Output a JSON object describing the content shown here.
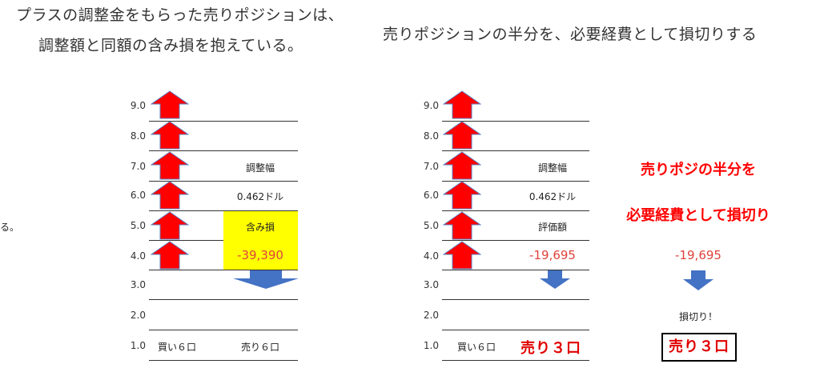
{
  "left_title": {
    "line1": "プラスの調整金をもらった売りポジションは、",
    "line2": "調整額と同額の含み損を抱えている。"
  },
  "right_title": "売りポジションの半分を、必要経費として損切りする",
  "side_fragment": "る。",
  "y_ticks": [
    "9.0",
    "8.0",
    "7.0",
    "6.0",
    "5.0",
    "4.0",
    "3.0",
    "2.0",
    "1.0"
  ],
  "left_panel": {
    "adjust_label": "調整幅",
    "adjust_value": "0.462ドル",
    "unrealized_label": "含み損",
    "unrealized_value": "-39,390",
    "buy_label": "買い６口",
    "sell_label": "売り６口"
  },
  "right_panel": {
    "adjust_label": "調整幅",
    "adjust_value": "0.462ドル",
    "valuation_label": "評価額",
    "valuation_value": "-19,695",
    "buy_label": "買い６口",
    "sell_label": "売り３口"
  },
  "annotation": {
    "line1": "売りポジの半分を",
    "line2": "必要経費として損切り",
    "loss_value": "-19,695",
    "stoploss_label": "損切り！",
    "sell_box_label": "売り３口"
  },
  "colors": {
    "up_arrow": "#ff0000",
    "up_arrow_outline": "#5b7fc4",
    "down_arrow": "#4472c4",
    "highlight": "#ffff00",
    "negative_text": "#e0433c"
  }
}
